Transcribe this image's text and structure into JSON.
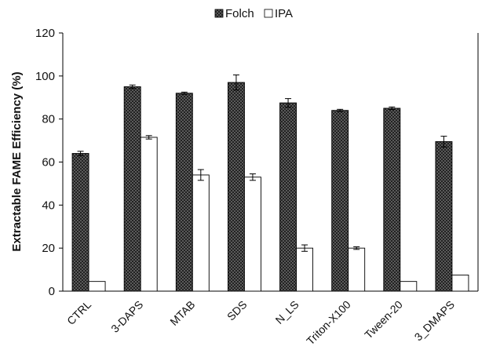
{
  "chart_data": {
    "type": "bar",
    "ylabel": "Extractable FAME Efficiency (%)",
    "xlabel": "",
    "ylim": [
      0,
      120
    ],
    "yticks": [
      0,
      20,
      40,
      60,
      80,
      100,
      120
    ],
    "grid": false,
    "legend_position": "top-center",
    "categories": [
      "CTRL",
      "3-DAPS",
      "MTAB",
      "SDS",
      "N_LS",
      "Triton-X100",
      "Tween-20",
      "3_DMAPS"
    ],
    "series": [
      {
        "name": "Folch",
        "pattern": "dark-checker",
        "values": [
          64,
          95,
          92,
          97,
          87.5,
          84,
          85,
          69.5
        ],
        "errors": [
          1,
          0.8,
          0.5,
          3.5,
          2,
          0.5,
          0.6,
          2.5
        ]
      },
      {
        "name": "IPA",
        "pattern": "white",
        "values": [
          4.5,
          71.5,
          54,
          53,
          20,
          20,
          4.5,
          7.5
        ],
        "errors": [
          0,
          0.8,
          2.5,
          1.5,
          1.5,
          0.6,
          0,
          0
        ]
      }
    ]
  }
}
